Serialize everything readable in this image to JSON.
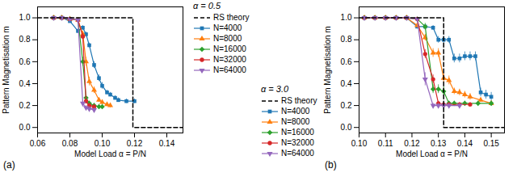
{
  "chart_data": [
    {
      "type": "line",
      "legend_title": "α = 0.5",
      "xlabel": "Model Load α = P/N",
      "ylabel": "Pattern Magnetisation m",
      "annotation": "(a)",
      "xlim": [
        0.06,
        0.15
      ],
      "ylim": [
        -0.05,
        1.1
      ],
      "xticks": [
        0.06,
        0.08,
        {
          "value": 0.1,
          "label": "0.10"
        },
        0.12,
        0.14
      ],
      "yticks": [
        {
          "value": 0,
          "label": "0.0"
        },
        0.2,
        0.4,
        0.6,
        0.8,
        {
          "value": 1,
          "label": "1.0"
        }
      ],
      "grid": false,
      "legend": "upper right",
      "series": [
        {
          "name": "RS theory",
          "color": "#000000",
          "line_style": "dashed",
          "x": [
            0.06,
            0.119,
            0.119,
            0.15
          ],
          "values": [
            1.0,
            1.0,
            0.0,
            0.0
          ]
        },
        {
          "name": "N=4000",
          "color": "#1f77b4",
          "marker": "square",
          "line_style": "solid",
          "x": [
            0.07,
            0.075,
            0.08,
            0.085,
            0.088,
            0.09,
            0.092,
            0.095,
            0.098,
            0.1,
            0.103,
            0.105,
            0.108,
            0.11,
            0.115,
            0.12
          ],
          "values": [
            1.0,
            1.0,
            0.97,
            0.88,
            0.91,
            0.85,
            0.75,
            0.57,
            0.45,
            0.38,
            0.32,
            0.3,
            0.27,
            0.25,
            0.24,
            0.24
          ],
          "yerr": [
            0.005,
            0.005,
            0.01,
            0.02,
            0.02,
            0.02,
            0.02,
            0.03,
            0.03,
            0.03,
            0.02,
            0.02,
            0.02,
            0.02,
            0.02,
            0.02
          ]
        },
        {
          "name": "N=8000",
          "color": "#ff7f0e",
          "marker": "triangle-up",
          "line_style": "solid",
          "x": [
            0.07,
            0.075,
            0.08,
            0.085,
            0.088,
            0.09,
            0.092,
            0.095,
            0.098,
            0.1,
            0.103,
            0.105
          ],
          "values": [
            1.0,
            1.0,
            0.99,
            0.98,
            0.85,
            0.6,
            0.42,
            0.34,
            0.25,
            0.23,
            0.21,
            0.2
          ],
          "yerr": [
            0.005,
            0.005,
            0.005,
            0.01,
            0.03,
            0.04,
            0.04,
            0.03,
            0.02,
            0.02,
            0.02,
            0.02
          ]
        },
        {
          "name": "N=16000",
          "color": "#2ca02c",
          "marker": "diamond",
          "line_style": "solid",
          "x": [
            0.07,
            0.075,
            0.08,
            0.085,
            0.088,
            0.09,
            0.092,
            0.095,
            0.098,
            0.1
          ],
          "values": [
            1.0,
            1.0,
            0.99,
            0.98,
            0.6,
            0.27,
            0.22,
            0.2,
            0.19,
            0.19
          ],
          "yerr": [
            0.005,
            0.005,
            0.005,
            0.01,
            0.04,
            0.03,
            0.02,
            0.02,
            0.02,
            0.02
          ]
        },
        {
          "name": "N=32000",
          "color": "#d62728",
          "marker": "circle",
          "line_style": "solid",
          "x": [
            0.07,
            0.075,
            0.08,
            0.085,
            0.088,
            0.09,
            0.092,
            0.095
          ],
          "values": [
            1.0,
            1.0,
            0.99,
            0.98,
            0.83,
            0.24,
            0.2,
            0.19
          ],
          "yerr": [
            0.005,
            0.005,
            0.005,
            0.01,
            0.03,
            0.02,
            0.02,
            0.02
          ]
        },
        {
          "name": "N=64000",
          "color": "#9467bd",
          "marker": "triangle-down",
          "line_style": "solid",
          "x": [
            0.07,
            0.075,
            0.08,
            0.085,
            0.088,
            0.09,
            0.092,
            0.095
          ],
          "values": [
            1.0,
            1.0,
            0.99,
            0.98,
            0.22,
            0.18,
            0.17,
            0.16
          ],
          "yerr": [
            0.005,
            0.005,
            0.005,
            0.01,
            0.03,
            0.02,
            0.02,
            0.02
          ]
        }
      ]
    },
    {
      "type": "line",
      "legend_title": "α = 3.0",
      "xlabel": "Model Load α = P/N",
      "ylabel": "Pattern Magnetisation m",
      "annotation": "(b)",
      "xlim": [
        0.1,
        0.155
      ],
      "ylim": [
        -0.05,
        1.1
      ],
      "xticks": [
        {
          "value": 0.1,
          "label": "0.10"
        },
        0.11,
        0.12,
        0.13,
        0.14,
        0.15
      ],
      "yticks": [
        {
          "value": 0,
          "label": "0.0"
        },
        0.2,
        0.4,
        0.6,
        0.8,
        {
          "value": 1,
          "label": "1.0"
        }
      ],
      "grid": false,
      "legend": "lower left",
      "series": [
        {
          "name": "RS theory",
          "color": "#000000",
          "line_style": "dashed",
          "x": [
            0.1,
            0.132,
            0.132,
            0.155
          ],
          "values": [
            1.0,
            1.0,
            0.0,
            0.0
          ]
        },
        {
          "name": "N=4000",
          "color": "#1f77b4",
          "marker": "square",
          "line_style": "solid",
          "x": [
            0.102,
            0.106,
            0.11,
            0.114,
            0.118,
            0.122,
            0.125,
            0.128,
            0.13,
            0.132,
            0.134,
            0.136,
            0.138,
            0.14,
            0.142,
            0.144,
            0.146,
            0.148,
            0.15
          ],
          "values": [
            1.0,
            1.0,
            1.0,
            1.0,
            1.0,
            0.92,
            0.92,
            0.91,
            0.8,
            0.8,
            0.8,
            0.63,
            0.63,
            0.65,
            0.65,
            0.65,
            0.32,
            0.3,
            0.28
          ],
          "yerr": [
            0.005,
            0.005,
            0.005,
            0.005,
            0.005,
            0.02,
            0.02,
            0.02,
            0.03,
            0.03,
            0.03,
            0.04,
            0.04,
            0.04,
            0.04,
            0.04,
            0.04,
            0.04,
            0.04
          ]
        },
        {
          "name": "N=8000",
          "color": "#ff7f0e",
          "marker": "triangle-up",
          "line_style": "solid",
          "x": [
            0.102,
            0.106,
            0.11,
            0.114,
            0.118,
            0.122,
            0.125,
            0.128,
            0.13,
            0.132,
            0.134,
            0.136,
            0.138,
            0.14,
            0.142,
            0.146,
            0.15
          ],
          "values": [
            1.0,
            1.0,
            1.0,
            1.0,
            1.0,
            0.93,
            0.82,
            0.68,
            0.68,
            0.45,
            0.43,
            0.33,
            0.32,
            0.3,
            0.28,
            0.25,
            0.22
          ],
          "yerr": [
            0.005,
            0.005,
            0.005,
            0.005,
            0.005,
            0.02,
            0.03,
            0.04,
            0.04,
            0.04,
            0.04,
            0.03,
            0.03,
            0.03,
            0.03,
            0.02,
            0.02
          ]
        },
        {
          "name": "N=16000",
          "color": "#2ca02c",
          "marker": "diamond",
          "line_style": "solid",
          "x": [
            0.102,
            0.106,
            0.11,
            0.114,
            0.118,
            0.122,
            0.125,
            0.128,
            0.13,
            0.132,
            0.134,
            0.136,
            0.14,
            0.145,
            0.15
          ],
          "values": [
            1.0,
            1.0,
            1.0,
            1.0,
            1.0,
            0.99,
            0.92,
            0.35,
            0.35,
            0.33,
            0.22,
            0.22,
            0.22,
            0.22,
            0.22
          ],
          "yerr": [
            0.005,
            0.005,
            0.005,
            0.005,
            0.005,
            0.01,
            0.03,
            0.04,
            0.04,
            0.04,
            0.02,
            0.02,
            0.02,
            0.02,
            0.02
          ]
        },
        {
          "name": "N=32000",
          "color": "#d62728",
          "marker": "circle",
          "line_style": "solid",
          "x": [
            0.102,
            0.106,
            0.11,
            0.114,
            0.118,
            0.122,
            0.125,
            0.128,
            0.13,
            0.132,
            0.134,
            0.138,
            0.142
          ],
          "values": [
            1.0,
            1.0,
            1.0,
            1.0,
            1.0,
            0.99,
            0.67,
            0.44,
            0.22,
            0.21,
            0.21,
            0.21,
            0.21
          ],
          "yerr": [
            0.005,
            0.005,
            0.005,
            0.005,
            0.005,
            0.01,
            0.04,
            0.04,
            0.02,
            0.02,
            0.02,
            0.02,
            0.02
          ]
        },
        {
          "name": "N=64000",
          "color": "#9467bd",
          "marker": "triangle-down",
          "line_style": "solid",
          "x": [
            0.102,
            0.106,
            0.11,
            0.114,
            0.118,
            0.122,
            0.125,
            0.128,
            0.13,
            0.132,
            0.134,
            0.138
          ],
          "values": [
            1.0,
            1.0,
            1.0,
            1.0,
            1.0,
            0.99,
            0.44,
            0.2,
            0.2,
            0.2,
            0.2,
            0.2
          ],
          "yerr": [
            0.005,
            0.005,
            0.005,
            0.005,
            0.005,
            0.01,
            0.06,
            0.02,
            0.02,
            0.02,
            0.02,
            0.02
          ]
        }
      ]
    }
  ]
}
